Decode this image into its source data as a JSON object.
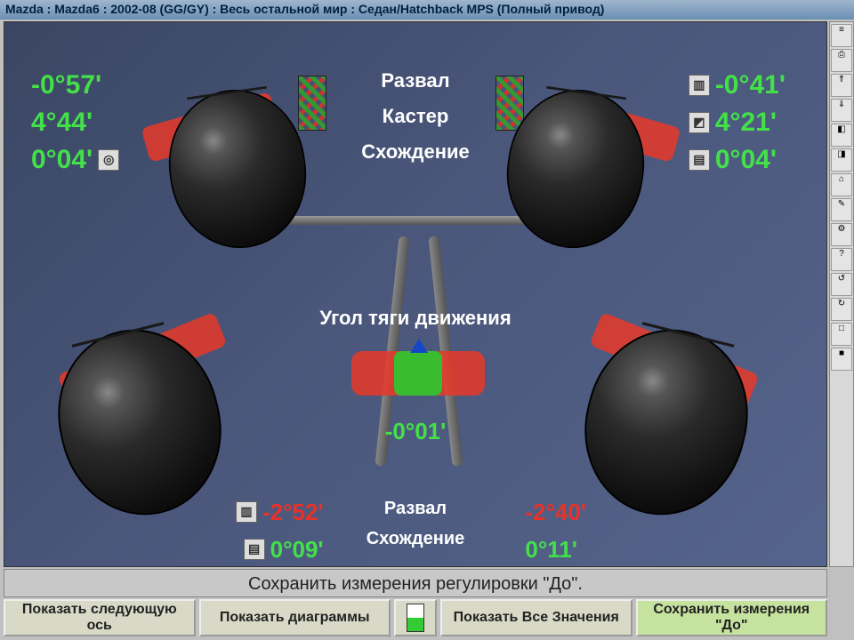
{
  "title": "Mazda : Mazda6 : 2002-08 (GG/GY) : Весь остальной мир : Седан/Hatchback MPS (Полный привод)",
  "labels": {
    "camber": "Развал",
    "caster": "Кастер",
    "toe": "Схождение",
    "thrust": "Угол тяги движения"
  },
  "colors": {
    "bg_from": "#3a4663",
    "bg_to": "#55648c",
    "ok": "#43e04a",
    "warn": "#e7322a",
    "white": "#ffffff"
  },
  "front": {
    "left": {
      "camber": "-0°57'",
      "camber_color": "#43e04a",
      "caster": "4°44'",
      "caster_color": "#43e04a",
      "toe": "0°04'",
      "toe_color": "#43e04a"
    },
    "right": {
      "camber": "-0°41'",
      "camber_color": "#43e04a",
      "caster": "4°21'",
      "caster_color": "#43e04a",
      "toe": "0°04'",
      "toe_color": "#43e04a"
    }
  },
  "rear": {
    "left": {
      "camber": "-2°52'",
      "camber_color": "#e7322a",
      "toe": "0°09'",
      "toe_color": "#43e04a"
    },
    "right": {
      "camber": "-2°40'",
      "camber_color": "#e7322a",
      "toe": "0°11'",
      "toe_color": "#43e04a"
    }
  },
  "thrust": {
    "value": "-0°01'",
    "color": "#43e04a"
  },
  "status": "Сохранить измерения регулировки \"До\".",
  "actions": {
    "next_axle": "Показать следующую ось",
    "diagrams": "Показать диаграммы",
    "all_values": "Показать Все Значения",
    "save_before": "Сохранить измерения \"До\""
  },
  "toolbar_icons": [
    "≡",
    "⎙",
    "⇑",
    "⇓",
    "◧",
    "◨",
    "⌂",
    "✎",
    "⚙",
    "?",
    "↺",
    "↻",
    "□",
    "■"
  ]
}
